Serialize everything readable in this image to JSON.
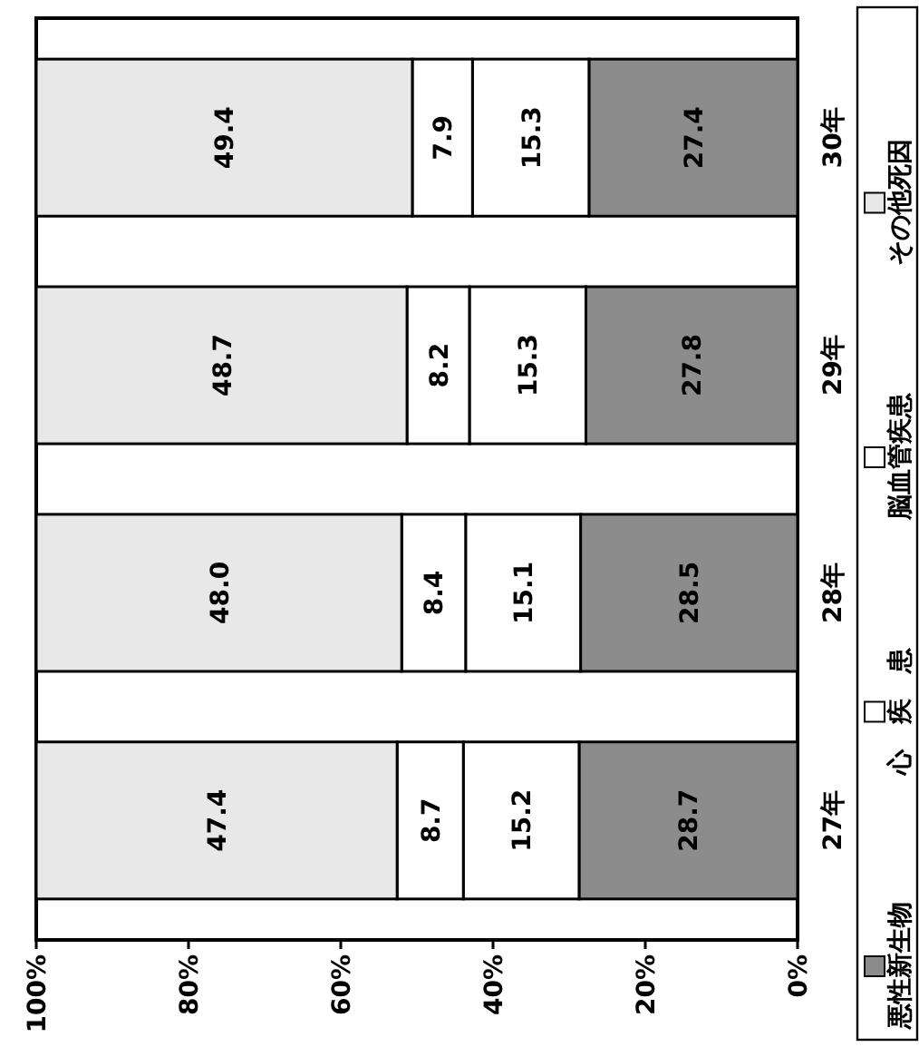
{
  "chart_data": {
    "type": "bar",
    "stacked": true,
    "orientation": "horizontal",
    "categories": [
      "30年",
      "29年",
      "28年",
      "27年"
    ],
    "series": [
      {
        "name": "悪性新生物",
        "color": "#8c8c8c",
        "values": [
          27.4,
          27.8,
          28.5,
          28.7
        ],
        "value_labels": [
          "27.4",
          "27.8",
          "28.5",
          "28.7"
        ]
      },
      {
        "name": "心　疾　患",
        "color": "#ffffff",
        "values": [
          15.3,
          15.3,
          15.1,
          15.2
        ],
        "value_labels": [
          "15.3",
          "15.3",
          "15.1",
          "15.2"
        ]
      },
      {
        "name": "脳血管疾患",
        "color": "#ffffff",
        "values": [
          7.9,
          8.2,
          8.4,
          8.7
        ],
        "value_labels": [
          "7.9",
          "8.2",
          "8.4",
          "8.7"
        ]
      },
      {
        "name": "その他死因",
        "color": "#e8e8e8",
        "values": [
          49.4,
          48.7,
          48.0,
          47.4
        ],
        "value_labels": [
          "49.4",
          "48.7",
          "48.0",
          "47.4"
        ]
      }
    ],
    "xlim": [
      100,
      0
    ],
    "xticks": [
      {
        "value": 100,
        "label": "100%"
      },
      {
        "value": 80,
        "label": "80%"
      },
      {
        "value": 60,
        "label": "60%"
      },
      {
        "value": 40,
        "label": "40%"
      },
      {
        "value": 20,
        "label": "20%"
      },
      {
        "value": 0,
        "label": "0%"
      }
    ],
    "grid": false,
    "legend": "right"
  }
}
